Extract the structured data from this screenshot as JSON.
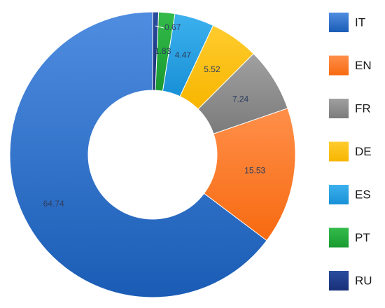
{
  "chart_data": {
    "type": "pie",
    "donut": true,
    "title": "",
    "legend_position": "right",
    "slices": [
      {
        "label": "IT",
        "value": 64.74,
        "color": "#2f6fc4"
      },
      {
        "label": "EN",
        "value": 15.53,
        "color": "#fb7a2e"
      },
      {
        "label": "FR",
        "value": 7.24,
        "color": "#8c8c8c"
      },
      {
        "label": "DE",
        "value": 5.52,
        "color": "#ffc000"
      },
      {
        "label": "ES",
        "value": 4.47,
        "color": "#1fa0e3"
      },
      {
        "label": "PT",
        "value": 1.83,
        "color": "#22a83a"
      },
      {
        "label": "RU",
        "value": 0.67,
        "color": "#1f3d8c"
      }
    ]
  }
}
